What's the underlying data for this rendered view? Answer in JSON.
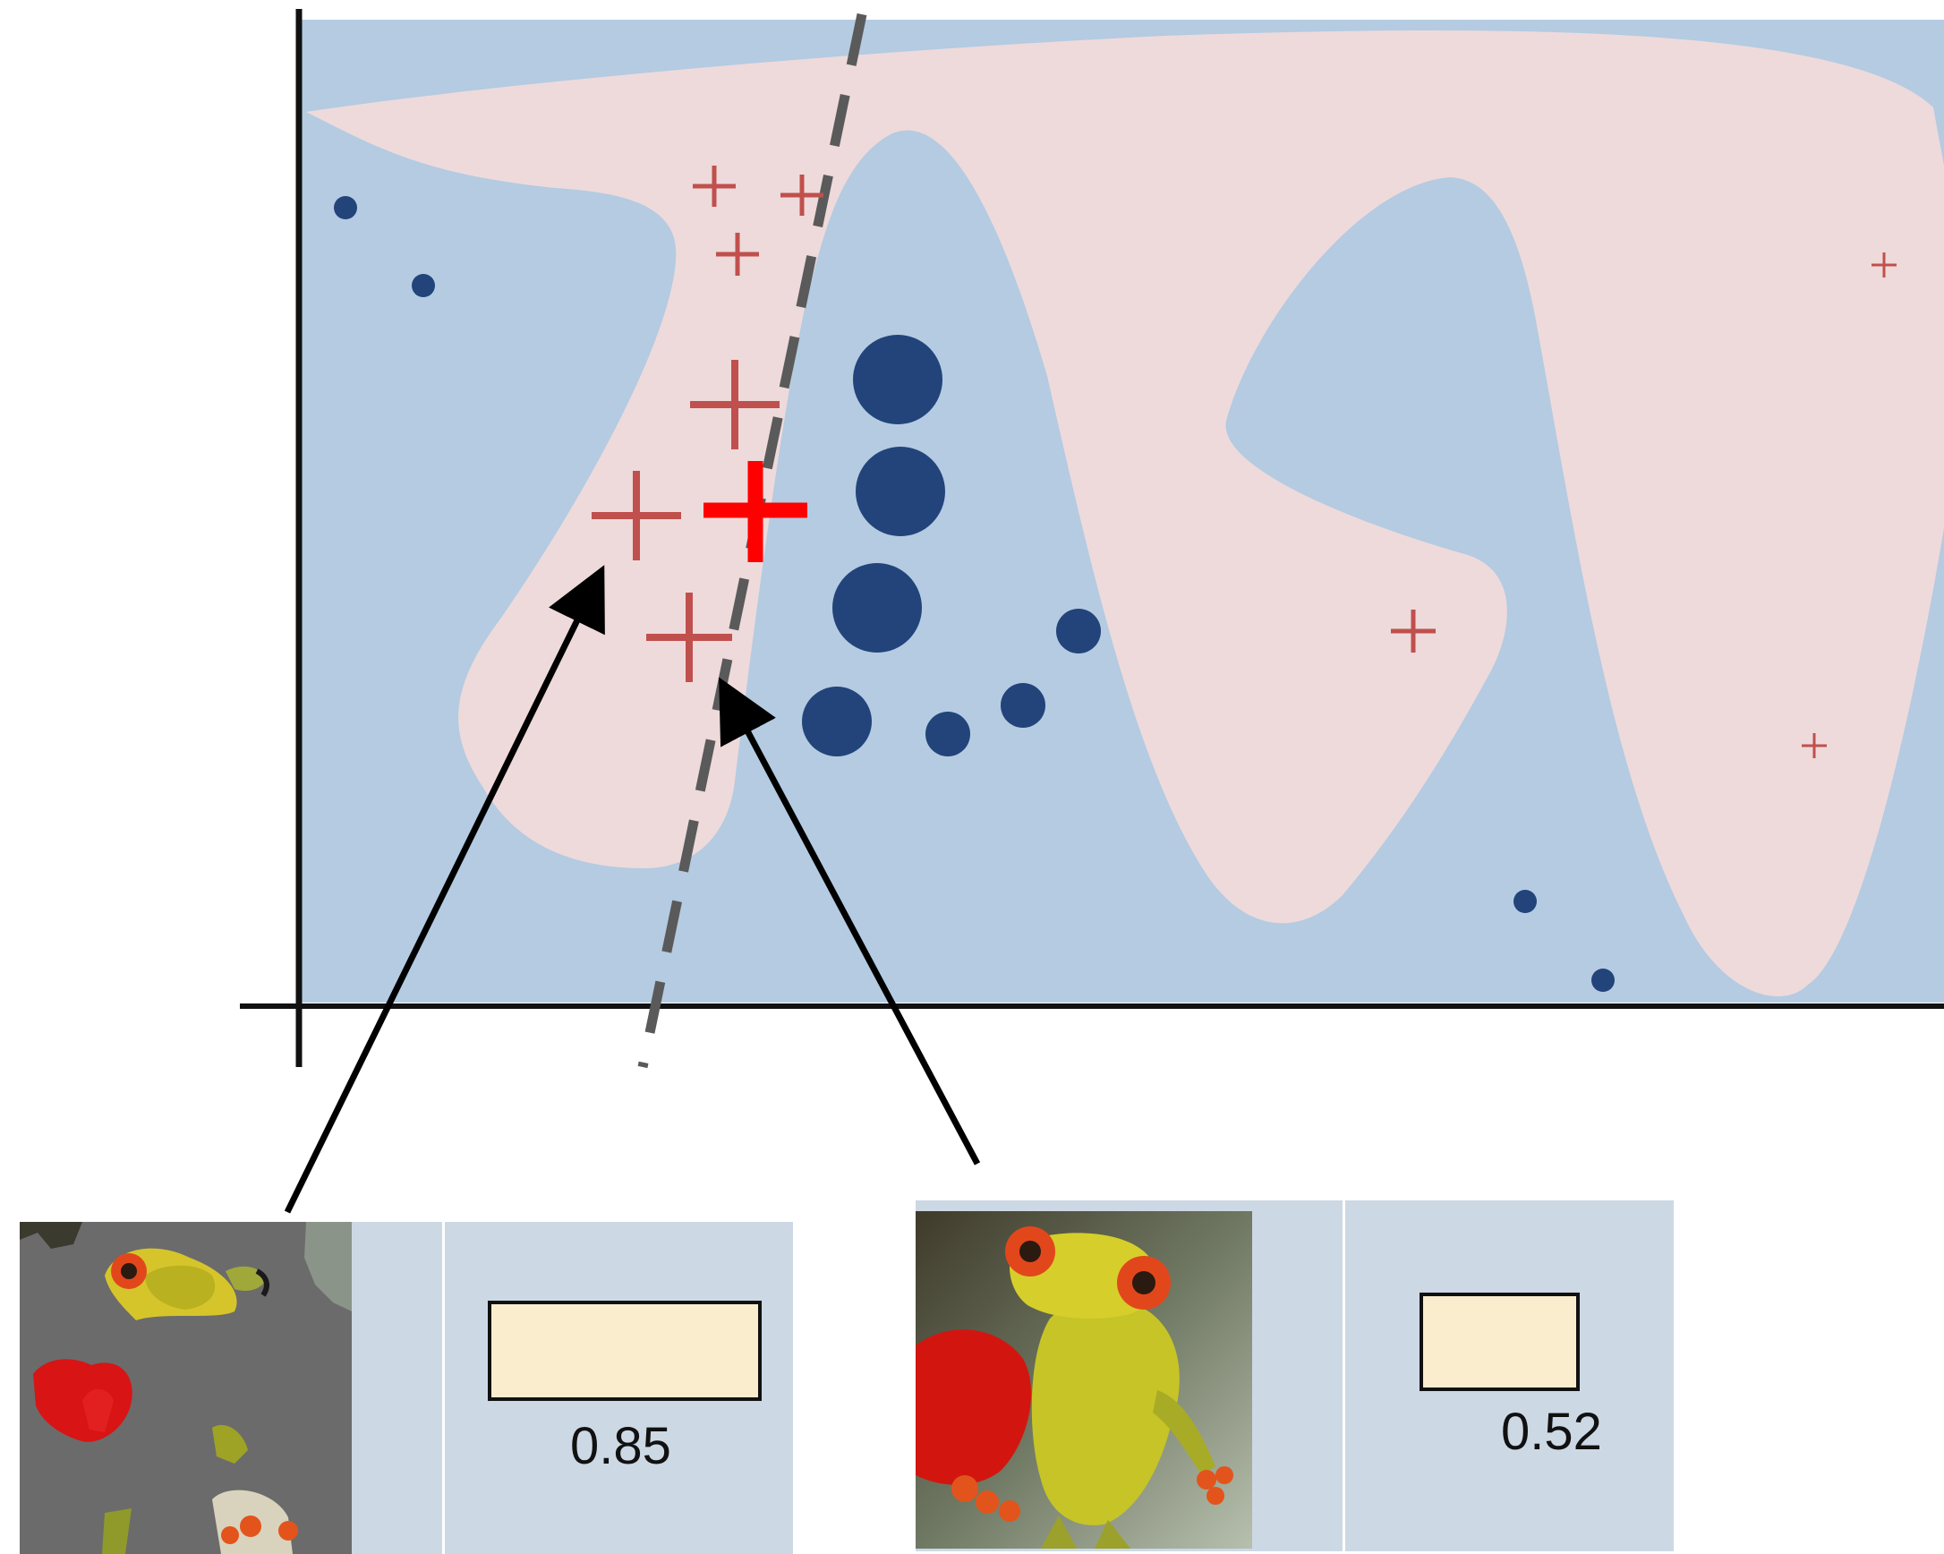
{
  "colors": {
    "region_a": "#b4cbe2",
    "region_b": "#eedadb",
    "circle_class": "#22447a",
    "plus_class": "#c0504d",
    "plus_highlight": "#ff0000",
    "boundary_line": "#5a5a5a",
    "panel_bg": "#cdd8e5",
    "score_fill": "#faedcd"
  },
  "icons": {
    "left_thumbnail": "frog-figurine-segmented-icon",
    "right_thumbnail": "frog-figurine-with-heart-icon"
  },
  "panels": [
    {
      "score_label": "0.85",
      "score_value": 0.85
    },
    {
      "score_label": "0.52",
      "score_value": 0.52
    }
  ]
}
